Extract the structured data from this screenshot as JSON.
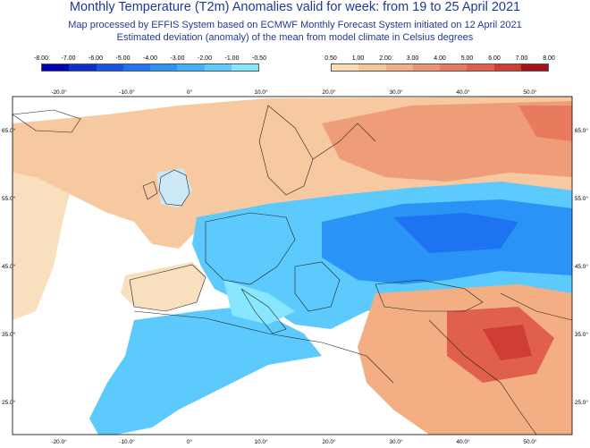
{
  "title": "Monthly Temperature (T2m) Anomalies valid for week: from 19 to 25 April 2021",
  "subtitle1": "Map processed by EFFIS System based on ECMWF Monthly Forecast System initiated on 12 April 2021",
  "subtitle2": "Estimated deviation (anomaly) of the mean from model climate in Celsius degrees",
  "legend_cold": {
    "ticks": [
      "-8.00",
      "-7.00",
      "-6.00",
      "-5.00",
      "-4.00",
      "-3.00",
      "-2.00",
      "-1.00",
      "-0.50"
    ],
    "colors": [
      "#0000b4",
      "#0b2fd0",
      "#1552e6",
      "#1e74f0",
      "#2a93f6",
      "#3fb0fa",
      "#5ccafc",
      "#88e6fe"
    ]
  },
  "legend_warm": {
    "ticks": [
      "0.50",
      "1.00",
      "2.00",
      "3.00",
      "4.00",
      "5.00",
      "6.00",
      "7.00",
      "8.00"
    ],
    "colors": [
      "#fbdcb2",
      "#f7c69a",
      "#f3ae84",
      "#ee9470",
      "#e87a5d",
      "#e0604b",
      "#cf3d34",
      "#a6121c"
    ]
  },
  "map": {
    "lon_labels": [
      "-20.0°",
      "-10.0°",
      "0°",
      "10.0°",
      "20.0°",
      "30.0°",
      "40.0°",
      "50.0°"
    ],
    "lat_labels": [
      "65.0°",
      "55.0°",
      "45.0°",
      "35.0°",
      "25.0°"
    ]
  }
}
